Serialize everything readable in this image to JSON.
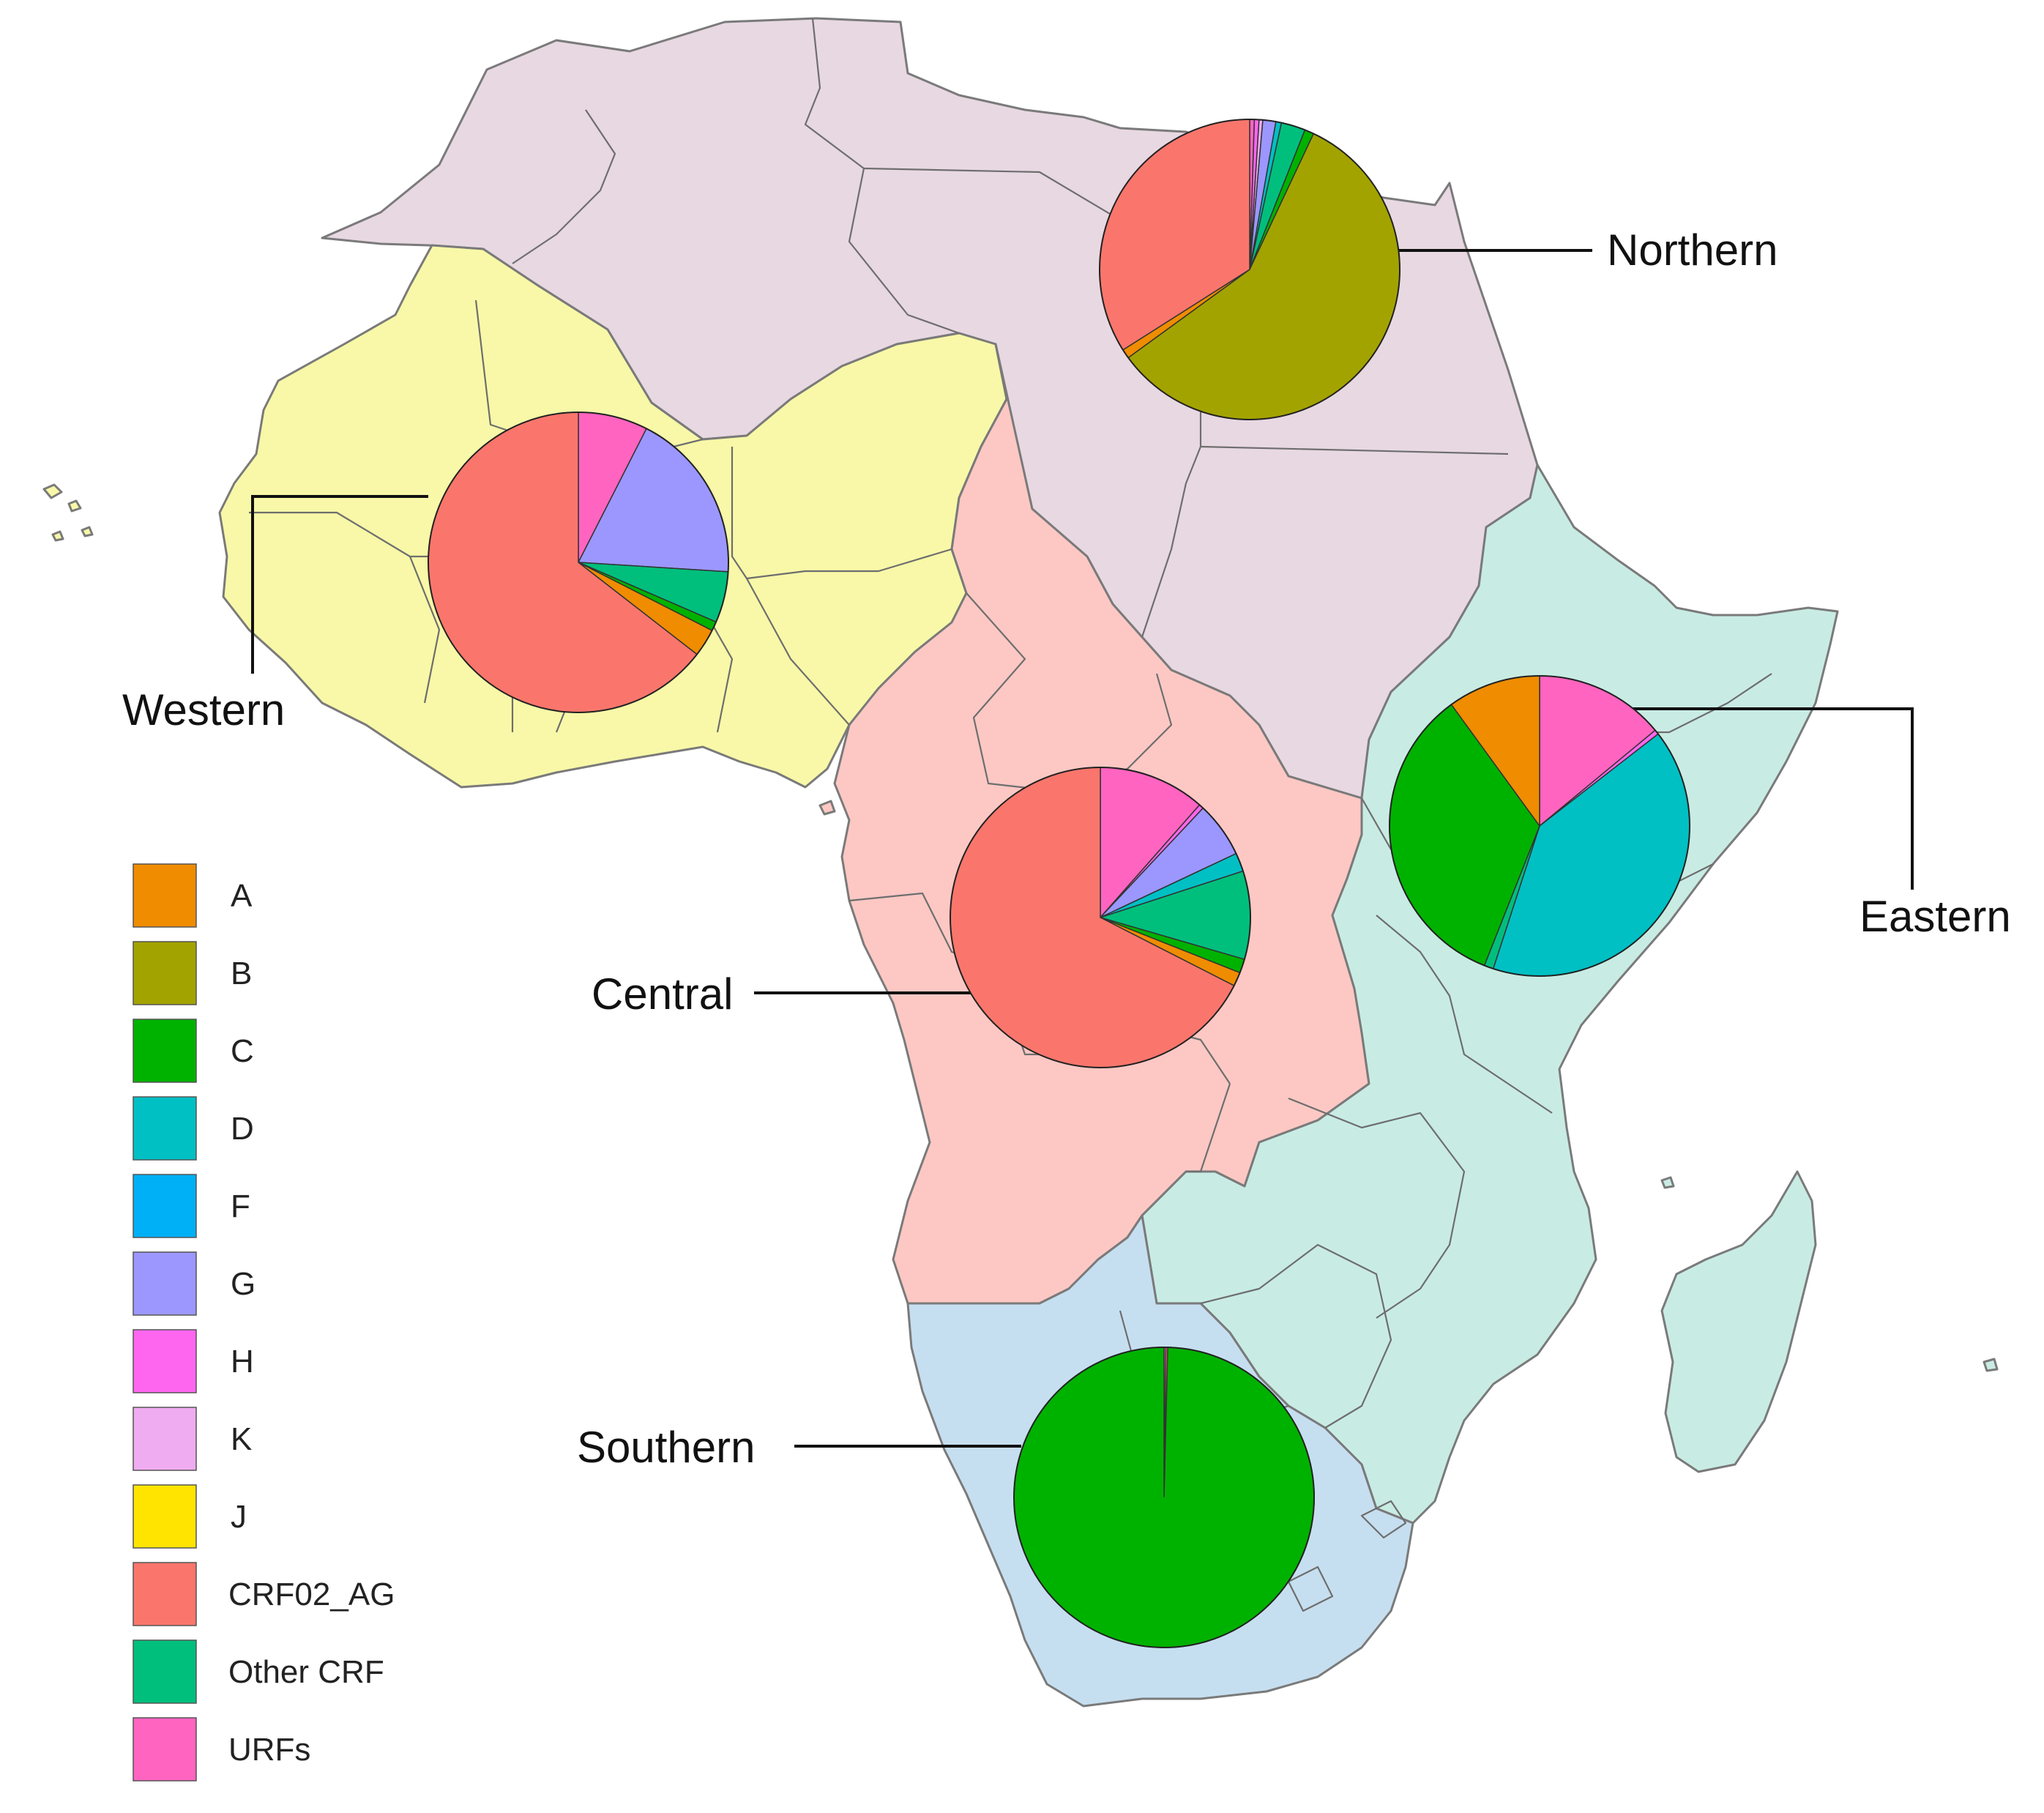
{
  "chart_data": {
    "type": "pie",
    "map": "Africa",
    "subtypes": [
      "A",
      "B",
      "C",
      "D",
      "F",
      "G",
      "H",
      "K",
      "J",
      "CRF02_AG",
      "Other CRF",
      "URFs"
    ],
    "colors": {
      "A": "#ef8c00",
      "B": "#a3a300",
      "C": "#00b200",
      "D": "#00c0c4",
      "F": "#00b0f6",
      "G": "#9b97ff",
      "H": "#ff66f0",
      "K": "#f0acf0",
      "J": "#ffe400",
      "CRF02_AG": "#fa766c",
      "Other CRF": "#00bf7d",
      "URFs": "#ff64c0"
    },
    "region_colors": {
      "Northern": "#e8d8e2",
      "Western": "#f8f8a8",
      "Central": "#fdc8c4",
      "Eastern": "#c8ece4",
      "Southern": "#c6dff0"
    },
    "regions": [
      {
        "name": "Northern",
        "label": "Northern",
        "slices": [
          {
            "subtype": "URFs",
            "value": 0.5
          },
          {
            "subtype": "H",
            "value": 0.5
          },
          {
            "subtype": "K",
            "value": 0.4
          },
          {
            "subtype": "G",
            "value": 1.4
          },
          {
            "subtype": "D",
            "value": 0.6
          },
          {
            "subtype": "Other CRF",
            "value": 2.6
          },
          {
            "subtype": "C",
            "value": 1.0
          },
          {
            "subtype": "B",
            "value": 58.0
          },
          {
            "subtype": "A",
            "value": 1.0
          },
          {
            "subtype": "CRF02_AG",
            "value": 34.0
          }
        ]
      },
      {
        "name": "Western",
        "label": "Western",
        "slices": [
          {
            "subtype": "URFs",
            "value": 7.5
          },
          {
            "subtype": "G",
            "value": 18.5
          },
          {
            "subtype": "Other CRF",
            "value": 5.5
          },
          {
            "subtype": "C",
            "value": 1.0
          },
          {
            "subtype": "A",
            "value": 3.0
          },
          {
            "subtype": "CRF02_AG",
            "value": 64.5
          }
        ]
      },
      {
        "name": "Central",
        "label": "Central",
        "slices": [
          {
            "subtype": "URFs",
            "value": 11.5
          },
          {
            "subtype": "H",
            "value": 0.5
          },
          {
            "subtype": "G",
            "value": 6.0
          },
          {
            "subtype": "D",
            "value": 2.0
          },
          {
            "subtype": "Other CRF",
            "value": 9.5
          },
          {
            "subtype": "C",
            "value": 1.5
          },
          {
            "subtype": "A",
            "value": 1.5
          },
          {
            "subtype": "CRF02_AG",
            "value": 67.5
          }
        ]
      },
      {
        "name": "Eastern",
        "label": "Eastern",
        "slices": [
          {
            "subtype": "URFs",
            "value": 14.0
          },
          {
            "subtype": "H",
            "value": 0.5
          },
          {
            "subtype": "D",
            "value": 40.5
          },
          {
            "subtype": "Other CRF",
            "value": 1.0
          },
          {
            "subtype": "C",
            "value": 34.0
          },
          {
            "subtype": "A",
            "value": 10.0
          }
        ]
      },
      {
        "name": "Southern",
        "label": "Southern",
        "slices": [
          {
            "subtype": "URFs",
            "value": 0.2
          },
          {
            "subtype": "CRF02_AG",
            "value": 0.2
          },
          {
            "subtype": "C",
            "value": 99.6
          }
        ]
      }
    ]
  },
  "legend": {
    "items": [
      {
        "label": "A",
        "color": "#ef8c00"
      },
      {
        "label": "B",
        "color": "#a3a300"
      },
      {
        "label": "C",
        "color": "#00b200"
      },
      {
        "label": "D",
        "color": "#00c0c4"
      },
      {
        "label": "F",
        "color": "#00b0f6"
      },
      {
        "label": "G",
        "color": "#9b97ff"
      },
      {
        "label": "H",
        "color": "#ff66f0"
      },
      {
        "label": "K",
        "color": "#f0acf0"
      },
      {
        "label": "J",
        "color": "#ffe400"
      },
      {
        "label": "CRF02_AG",
        "color": "#fa766c"
      },
      {
        "label": "Other CRF",
        "color": "#00bf7d"
      },
      {
        "label": "URFs",
        "color": "#ff64c0"
      }
    ]
  }
}
